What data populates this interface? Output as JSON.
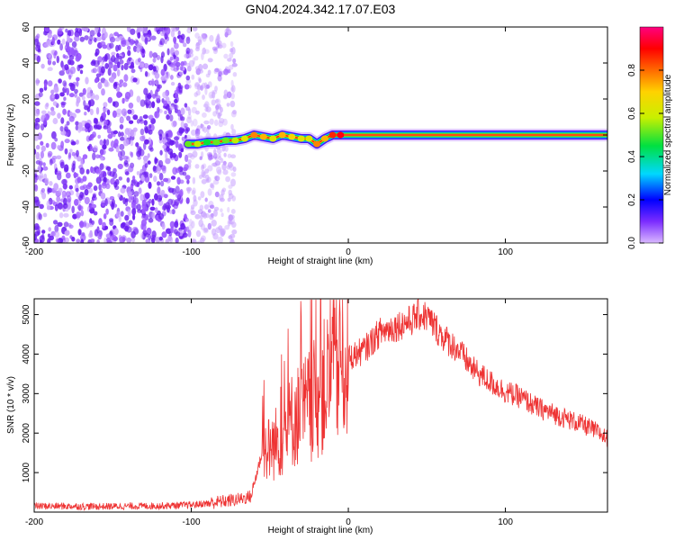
{
  "title": "GN04.2024.342.17.07.E03",
  "chart_data": [
    {
      "type": "heatmap",
      "xlabel": "Height of straight line (km)",
      "ylabel": "Frequency (Hz)",
      "xlim": [
        -200,
        165
      ],
      "ylim": [
        -60,
        60
      ],
      "xticks": [
        "-200",
        "-100",
        "0",
        "100"
      ],
      "yticks": [
        "60",
        "40",
        "20",
        "0",
        "-20",
        "-40",
        "-60"
      ],
      "colorbar": {
        "label": "Normalized spectral amplitude",
        "range": [
          0,
          1
        ],
        "ticks": [
          "0.0",
          "0.2",
          "0.4",
          "0.6",
          "0.8"
        ],
        "colors": [
          "#d9b8ff",
          "#7b2cff",
          "#0000ff",
          "#00d8ff",
          "#00e040",
          "#c8f000",
          "#ffd200",
          "#ff6a00",
          "#ff0000",
          "#ff0080"
        ]
      },
      "noise_region_x": [
        -200,
        -72
      ],
      "signal_track": [
        {
          "x": -102,
          "y": -5,
          "amp": 0.5
        },
        {
          "x": -96,
          "y": -5,
          "amp": 0.55
        },
        {
          "x": -90,
          "y": -4,
          "amp": 0.45
        },
        {
          "x": -84,
          "y": -4,
          "amp": 0.5
        },
        {
          "x": -78,
          "y": -3,
          "amp": 0.5
        },
        {
          "x": -72,
          "y": -3,
          "amp": 0.55
        },
        {
          "x": -66,
          "y": -2,
          "amp": 0.6
        },
        {
          "x": -60,
          "y": 0,
          "amp": 0.75
        },
        {
          "x": -54,
          "y": -1,
          "amp": 0.7
        },
        {
          "x": -48,
          "y": -2,
          "amp": 0.6
        },
        {
          "x": -42,
          "y": 0,
          "amp": 0.7
        },
        {
          "x": -36,
          "y": -1,
          "amp": 0.65
        },
        {
          "x": -30,
          "y": -2,
          "amp": 0.6
        },
        {
          "x": -25,
          "y": -2,
          "amp": 0.6
        },
        {
          "x": -20,
          "y": -5,
          "amp": 0.75
        },
        {
          "x": -15,
          "y": -2,
          "amp": 0.7
        },
        {
          "x": -10,
          "y": 0,
          "amp": 0.85
        },
        {
          "x": -5,
          "y": 0,
          "amp": 0.9
        },
        {
          "x": 0,
          "y": 0,
          "amp": 0.95
        },
        {
          "x": 50,
          "y": 0,
          "amp": 1.0
        },
        {
          "x": 100,
          "y": 0,
          "amp": 0.95
        },
        {
          "x": 165,
          "y": 0,
          "amp": 0.95
        }
      ]
    },
    {
      "type": "line",
      "xlabel": "Height of straight line (km)",
      "ylabel": "SNR (10 * v/v)",
      "xlim": [
        -200,
        165
      ],
      "ylim": [
        0,
        5400
      ],
      "xticks": [
        "-200",
        "-100",
        "0",
        "100"
      ],
      "yticks": [
        "5000",
        "4000",
        "3000",
        "2000",
        "1000"
      ],
      "color": "#ee3333",
      "series": [
        {
          "x": [
            -200,
            -180,
            -160,
            -140,
            -120,
            -100,
            -90,
            -80,
            -70,
            -62,
            -55,
            -50,
            -45,
            -40,
            -35,
            -30,
            -25,
            -20,
            -15,
            -10,
            -5,
            0,
            10,
            20,
            30,
            40,
            45,
            50,
            55,
            60,
            70,
            80,
            90,
            100,
            110,
            120,
            130,
            140,
            150,
            160,
            165
          ],
          "y": [
            150,
            150,
            140,
            150,
            160,
            180,
            220,
            270,
            320,
            400,
            1500,
            1600,
            1800,
            2000,
            2400,
            2500,
            2700,
            2900,
            3200,
            3500,
            3700,
            3900,
            4100,
            4550,
            4700,
            4850,
            5000,
            4950,
            4700,
            4450,
            4100,
            3600,
            3300,
            3050,
            2900,
            2650,
            2500,
            2350,
            2200,
            2000,
            1850
          ]
        }
      ]
    }
  ]
}
